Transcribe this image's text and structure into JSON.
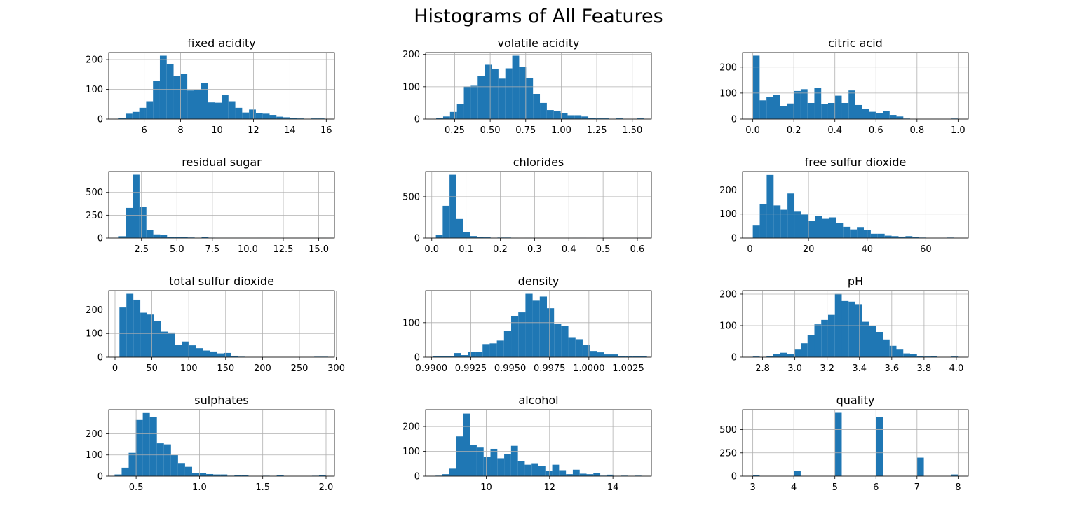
{
  "title": "Histograms of All Features",
  "colors": {
    "bar": "#1f77b4",
    "grid": "#b0b0b0",
    "axis": "#000000"
  },
  "chart_data": [
    {
      "type": "bar",
      "title": "fixed acidity",
      "grid": true,
      "xlim": [
        4.05,
        16.45
      ],
      "ylim": [
        0,
        223.65
      ],
      "xticks": [
        6,
        8,
        10,
        12,
        14,
        16
      ],
      "xtick_labels": [
        "6",
        "8",
        "10",
        "12",
        "14",
        "16"
      ],
      "yticks": [
        0,
        100,
        200
      ],
      "ytick_labels": [
        "0",
        "100",
        "200"
      ],
      "bin_range": [
        4.6,
        15.9
      ],
      "values": [
        4,
        18,
        24,
        38,
        60,
        128,
        213,
        186,
        145,
        152,
        96,
        98,
        122,
        56,
        55,
        80,
        60,
        38,
        22,
        32,
        20,
        18,
        14,
        8,
        6,
        4,
        2,
        0,
        2,
        2
      ]
    },
    {
      "type": "bar",
      "title": "volatile acidity",
      "grid": true,
      "xlim": [
        0.0455,
        1.6345
      ],
      "ylim": [
        0,
        205.8
      ],
      "xticks": [
        0.25,
        0.5,
        0.75,
        1.0,
        1.25,
        1.5
      ],
      "xtick_labels": [
        "0.25",
        "0.50",
        "0.75",
        "1.00",
        "1.25",
        "1.50"
      ],
      "yticks": [
        0,
        100,
        200
      ],
      "ytick_labels": [
        "0",
        "100",
        "200"
      ],
      "bin_range": [
        0.12,
        1.58
      ],
      "values": [
        3,
        8,
        22,
        46,
        101,
        103,
        134,
        168,
        156,
        125,
        157,
        196,
        162,
        126,
        78,
        50,
        28,
        26,
        18,
        12,
        12,
        8,
        3,
        2,
        2,
        0,
        2,
        0,
        0,
        2
      ]
    },
    {
      "type": "bar",
      "title": "citric acid",
      "grid": true,
      "xlim": [
        -0.05,
        1.05
      ],
      "ylim": [
        0,
        256
      ],
      "xticks": [
        0.0,
        0.2,
        0.4,
        0.6,
        0.8,
        1.0
      ],
      "xtick_labels": [
        "0.0",
        "0.2",
        "0.4",
        "0.6",
        "0.8",
        "1.0"
      ],
      "yticks": [
        0,
        100,
        200
      ],
      "ytick_labels": [
        "0",
        "100",
        "200"
      ],
      "bin_range": [
        0.0,
        1.0
      ],
      "values": [
        244,
        72,
        84,
        92,
        50,
        60,
        108,
        115,
        62,
        120,
        58,
        62,
        90,
        62,
        110,
        54,
        40,
        28,
        24,
        30,
        16,
        10,
        2,
        0,
        0,
        0,
        0,
        0,
        0,
        2
      ]
    },
    {
      "type": "bar",
      "title": "residual sugar",
      "grid": true,
      "xlim": [
        0.19,
        16.11
      ],
      "ylim": [
        0,
        727.65
      ],
      "xticks": [
        2.5,
        5.0,
        7.5,
        10.0,
        12.5,
        15.0
      ],
      "xtick_labels": [
        "2.5",
        "5.0",
        "7.5",
        "10.0",
        "12.5",
        "15.0"
      ],
      "yticks": [
        0,
        250,
        500
      ],
      "ytick_labels": [
        "0",
        "250",
        "500"
      ],
      "bin_range": [
        0.9,
        15.5
      ],
      "values": [
        20,
        330,
        693,
        340,
        90,
        40,
        36,
        15,
        12,
        12,
        6,
        2,
        8,
        4,
        2,
        2,
        2,
        2,
        2,
        0,
        2,
        2,
        0,
        0,
        0,
        0,
        0,
        0,
        0,
        2
      ]
    },
    {
      "type": "bar",
      "title": "chlorides",
      "grid": true,
      "xlim": [
        -0.0179,
        0.6409
      ],
      "ylim": [
        0,
        804
      ],
      "xticks": [
        0.0,
        0.1,
        0.2,
        0.3,
        0.4,
        0.5,
        0.6
      ],
      "xtick_labels": [
        "0.0",
        "0.1",
        "0.2",
        "0.3",
        "0.4",
        "0.5",
        "0.6"
      ],
      "yticks": [
        0,
        500
      ],
      "ytick_labels": [
        "0",
        "500"
      ],
      "bin_range": [
        0.012,
        0.611
      ],
      "values": [
        35,
        390,
        765,
        230,
        70,
        24,
        10,
        8,
        3,
        6,
        6,
        2,
        0,
        2,
        0,
        0,
        0,
        0,
        0,
        0,
        2,
        3,
        0,
        0,
        0,
        0,
        0,
        0,
        0,
        2
      ]
    },
    {
      "type": "bar",
      "title": "free sulfur dioxide",
      "grid": true,
      "xlim": [
        -2.5,
        74.5
      ],
      "ylim": [
        0,
        277.2
      ],
      "xticks": [
        0,
        20,
        40,
        60
      ],
      "xtick_labels": [
        "0",
        "20",
        "40",
        "60"
      ],
      "yticks": [
        0,
        100,
        200
      ],
      "ytick_labels": [
        "0",
        "100",
        "200"
      ],
      "bin_range": [
        1,
        72
      ],
      "values": [
        52,
        143,
        263,
        136,
        118,
        186,
        110,
        98,
        70,
        92,
        80,
        86,
        62,
        47,
        36,
        46,
        34,
        18,
        18,
        10,
        8,
        6,
        8,
        4,
        2,
        0,
        0,
        0,
        2,
        0
      ]
    },
    {
      "type": "bar",
      "title": "total sulfur dioxide",
      "grid": true,
      "xlim": [
        -8.55,
        297.55
      ],
      "ylim": [
        0,
        281.4
      ],
      "xticks": [
        0,
        50,
        100,
        150,
        200,
        250,
        300
      ],
      "xtick_labels": [
        "0",
        "50",
        "100",
        "150",
        "200",
        "250",
        "300"
      ],
      "yticks": [
        0,
        100,
        200
      ],
      "ytick_labels": [
        "0",
        "100",
        "200"
      ],
      "bin_range": [
        6,
        289
      ],
      "values": [
        210,
        268,
        243,
        188,
        180,
        152,
        108,
        104,
        52,
        66,
        50,
        38,
        28,
        24,
        16,
        18,
        6,
        2,
        0,
        0,
        0,
        0,
        0,
        0,
        0,
        0,
        0,
        0,
        2,
        2
      ]
    },
    {
      "type": "bar",
      "title": "density",
      "grid": true,
      "xlim": [
        0.98963,
        1.00397
      ],
      "ylim": [
        0,
        193.2
      ],
      "xticks": [
        0.99,
        0.9925,
        0.995,
        0.9975,
        1.0,
        1.0025
      ],
      "xtick_labels": [
        "0.9900",
        "0.9925",
        "0.9950",
        "0.9975",
        "1.0000",
        "1.0025"
      ],
      "yticks": [
        0,
        100
      ],
      "ytick_labels": [
        "0",
        "100"
      ],
      "bin_range": [
        0.99007,
        1.00369
      ],
      "values": [
        4,
        4,
        2,
        12,
        6,
        16,
        16,
        38,
        40,
        48,
        76,
        120,
        130,
        184,
        164,
        176,
        142,
        96,
        90,
        58,
        52,
        36,
        18,
        14,
        8,
        8,
        4,
        2,
        4,
        2
      ]
    },
    {
      "type": "bar",
      "title": "pH",
      "grid": true,
      "xlim": [
        2.676,
        4.074
      ],
      "ylim": [
        0,
        211.05
      ],
      "xticks": [
        2.8,
        3.0,
        3.2,
        3.4,
        3.6,
        3.8,
        4.0
      ],
      "xtick_labels": [
        "2.8",
        "3.0",
        "3.2",
        "3.4",
        "3.6",
        "3.8",
        "4.0"
      ],
      "yticks": [
        0,
        100,
        200
      ],
      "ytick_labels": [
        "0",
        "100",
        "200"
      ],
      "bin_range": [
        2.74,
        4.01
      ],
      "values": [
        2,
        0,
        4,
        10,
        14,
        10,
        24,
        44,
        70,
        104,
        118,
        134,
        201,
        178,
        176,
        168,
        112,
        98,
        80,
        56,
        36,
        24,
        12,
        10,
        4,
        2,
        4,
        0,
        0,
        2
      ]
    },
    {
      "type": "bar",
      "title": "sulphates",
      "grid": true,
      "xlim": [
        0.2835,
        2.0665
      ],
      "ylim": [
        0,
        313.95
      ],
      "xticks": [
        0.5,
        1.0,
        1.5,
        2.0
      ],
      "xtick_labels": [
        "0.5",
        "1.0",
        "1.5",
        "2.0"
      ],
      "yticks": [
        0,
        100,
        200
      ],
      "ytick_labels": [
        "0",
        "100",
        "200"
      ],
      "bin_range": [
        0.33,
        2.0
      ],
      "values": [
        8,
        40,
        110,
        265,
        298,
        280,
        155,
        150,
        100,
        62,
        44,
        16,
        16,
        10,
        8,
        8,
        2,
        6,
        4,
        0,
        0,
        2,
        0,
        4,
        0,
        0,
        0,
        0,
        2,
        6
      ]
    },
    {
      "type": "bar",
      "title": "alcohol",
      "grid": true,
      "xlim": [
        8.085,
        15.215
      ],
      "ylim": [
        0,
        267.75
      ],
      "xticks": [
        10,
        12,
        14
      ],
      "xtick_labels": [
        "10",
        "12",
        "14"
      ],
      "bin_range": [
        8.4,
        14.9
      ],
      "yticks": [
        0,
        100,
        200
      ],
      "ytick_labels": [
        "0",
        "100",
        "200"
      ],
      "values": [
        2,
        8,
        30,
        160,
        252,
        125,
        115,
        78,
        110,
        72,
        90,
        122,
        62,
        46,
        52,
        42,
        22,
        46,
        24,
        8,
        26,
        10,
        8,
        12,
        2,
        6,
        0,
        2,
        0,
        2
      ]
    },
    {
      "type": "bar",
      "title": "quality",
      "grid": true,
      "xlim": [
        2.75,
        8.25
      ],
      "ylim": [
        0,
        715.05
      ],
      "xticks": [
        3,
        4,
        5,
        6,
        7,
        8
      ],
      "xtick_labels": [
        "3",
        "4",
        "5",
        "6",
        "7",
        "8"
      ],
      "yticks": [
        0,
        250,
        500
      ],
      "ytick_labels": [
        "0",
        "250",
        "500"
      ],
      "bin_range": [
        3,
        8
      ],
      "values": [
        10,
        0,
        0,
        0,
        0,
        0,
        53,
        0,
        0,
        0,
        0,
        0,
        681,
        0,
        0,
        0,
        0,
        0,
        638,
        0,
        0,
        0,
        0,
        0,
        199,
        0,
        0,
        0,
        0,
        18
      ]
    }
  ]
}
